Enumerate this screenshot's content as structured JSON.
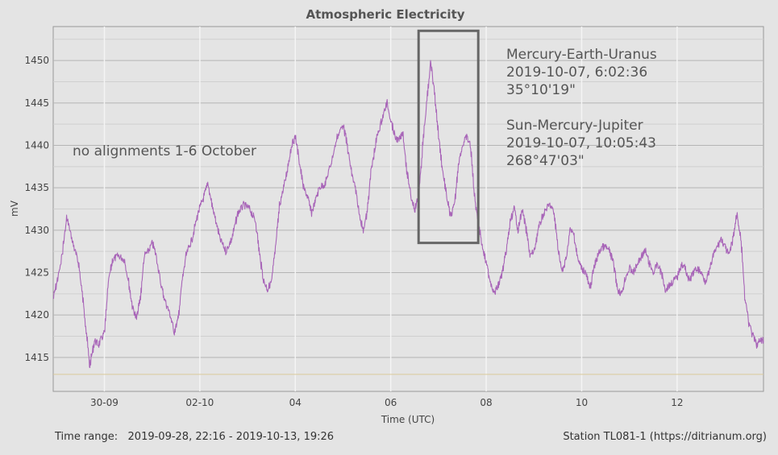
{
  "chart_data": {
    "type": "line",
    "title": "Atmospheric Electricity",
    "xlabel": "Time (UTC)",
    "ylabel": "mV",
    "xlim": [
      "2019-09-28T22:16",
      "2019-10-13T19:26"
    ],
    "ylim": [
      1411,
      1454
    ],
    "x_ticks": [
      {
        "t": "2019-09-30T00:00",
        "label": "30-09"
      },
      {
        "t": "2019-10-02T00:00",
        "label": "02-10"
      },
      {
        "t": "2019-10-04T00:00",
        "label": "04"
      },
      {
        "t": "2019-10-06T00:00",
        "label": "06"
      },
      {
        "t": "2019-10-08T00:00",
        "label": "08"
      },
      {
        "t": "2019-10-10T00:00",
        "label": "10"
      },
      {
        "t": "2019-10-12T00:00",
        "label": "12"
      }
    ],
    "y_ticks": [
      1415,
      1420,
      1425,
      1430,
      1435,
      1440,
      1445,
      1450
    ],
    "reference_line": 1413,
    "grid": true,
    "series_color": "#a865b8",
    "series": [
      {
        "points": [
          [
            "2019-09-28T22:16",
            1422.0
          ],
          [
            "2019-09-29T02:00",
            1426.0
          ],
          [
            "2019-09-29T05:00",
            1431.5
          ],
          [
            "2019-09-29T08:00",
            1428.5
          ],
          [
            "2019-09-29T11:00",
            1426.0
          ],
          [
            "2019-09-29T14:00",
            1420.0
          ],
          [
            "2019-09-29T16:30",
            1414.0
          ],
          [
            "2019-09-29T19:00",
            1417.0
          ],
          [
            "2019-09-29T21:00",
            1416.5
          ],
          [
            "2019-09-30T00:00",
            1418.0
          ],
          [
            "2019-09-30T02:00",
            1424.0
          ],
          [
            "2019-09-30T04:00",
            1426.5
          ],
          [
            "2019-09-30T07:00",
            1427.0
          ],
          [
            "2019-09-30T10:00",
            1426.5
          ],
          [
            "2019-09-30T12:00",
            1424.0
          ],
          [
            "2019-09-30T14:00",
            1421.0
          ],
          [
            "2019-09-30T16:00",
            1419.5
          ],
          [
            "2019-09-30T18:00",
            1422.0
          ],
          [
            "2019-09-30T20:00",
            1427.0
          ],
          [
            "2019-09-30T22:00",
            1427.5
          ],
          [
            "2019-10-01T00:00",
            1428.5
          ],
          [
            "2019-10-01T02:00",
            1427.0
          ],
          [
            "2019-10-01T04:00",
            1424.0
          ],
          [
            "2019-10-01T06:00",
            1422.0
          ],
          [
            "2019-10-01T09:00",
            1420.0
          ],
          [
            "2019-10-01T11:00",
            1418.0
          ],
          [
            "2019-10-01T13:00",
            1419.5
          ],
          [
            "2019-10-01T15:00",
            1424.0
          ],
          [
            "2019-10-01T17:00",
            1427.0
          ],
          [
            "2019-10-01T20:00",
            1429.0
          ],
          [
            "2019-10-01T23:00",
            1432.0
          ],
          [
            "2019-10-02T02:00",
            1434.0
          ],
          [
            "2019-10-02T04:00",
            1435.5
          ],
          [
            "2019-10-02T06:00",
            1433.0
          ],
          [
            "2019-10-02T08:00",
            1431.0
          ],
          [
            "2019-10-02T10:00",
            1429.0
          ],
          [
            "2019-10-02T13:00",
            1427.5
          ],
          [
            "2019-10-02T16:00",
            1429.0
          ],
          [
            "2019-10-02T19:00",
            1432.0
          ],
          [
            "2019-10-02T22:00",
            1433.0
          ],
          [
            "2019-10-03T01:00",
            1432.5
          ],
          [
            "2019-10-03T04:00",
            1431.0
          ],
          [
            "2019-10-03T06:00",
            1427.0
          ],
          [
            "2019-10-03T08:00",
            1424.0
          ],
          [
            "2019-10-03T10:00",
            1423.0
          ],
          [
            "2019-10-03T12:00",
            1424.0
          ],
          [
            "2019-10-03T14:00",
            1428.0
          ],
          [
            "2019-10-03T16:00",
            1433.0
          ],
          [
            "2019-10-03T19:00",
            1436.0
          ],
          [
            "2019-10-03T22:00",
            1440.0
          ],
          [
            "2019-10-04T00:00",
            1441.0
          ],
          [
            "2019-10-04T02:00",
            1438.0
          ],
          [
            "2019-10-04T04:00",
            1435.0
          ],
          [
            "2019-10-04T06:00",
            1434.0
          ],
          [
            "2019-10-04T08:00",
            1432.0
          ],
          [
            "2019-10-04T10:00",
            1433.5
          ],
          [
            "2019-10-04T12:00",
            1435.0
          ],
          [
            "2019-10-04T15:00",
            1435.5
          ],
          [
            "2019-10-04T18:00",
            1438.0
          ],
          [
            "2019-10-04T21:00",
            1441.0
          ],
          [
            "2019-10-05T00:00",
            1442.5
          ],
          [
            "2019-10-05T02:00",
            1440.0
          ],
          [
            "2019-10-05T04:00",
            1437.0
          ],
          [
            "2019-10-05T06:00",
            1435.0
          ],
          [
            "2019-10-05T08:00",
            1432.0
          ],
          [
            "2019-10-05T10:00",
            1430.0
          ],
          [
            "2019-10-05T12:00",
            1432.0
          ],
          [
            "2019-10-05T14:00",
            1437.0
          ],
          [
            "2019-10-05T17:00",
            1441.0
          ],
          [
            "2019-10-05T20:00",
            1443.5
          ],
          [
            "2019-10-05T22:00",
            1445.0
          ],
          [
            "2019-10-06T00:00",
            1443.0
          ],
          [
            "2019-10-06T02:00",
            1441.0
          ],
          [
            "2019-10-06T04:00",
            1440.5
          ],
          [
            "2019-10-06T06:00",
            1441.5
          ],
          [
            "2019-10-06T08:00",
            1437.0
          ],
          [
            "2019-10-06T10:00",
            1434.0
          ],
          [
            "2019-10-06T12:00",
            1432.5
          ],
          [
            "2019-10-06T14:00",
            1434.0
          ],
          [
            "2019-10-06T16:00",
            1440.0
          ],
          [
            "2019-10-06T18:00",
            1445.0
          ],
          [
            "2019-10-06T20:00",
            1450.0
          ],
          [
            "2019-10-06T22:00",
            1446.0
          ],
          [
            "2019-10-07T00:00",
            1441.0
          ],
          [
            "2019-10-07T02:00",
            1437.0
          ],
          [
            "2019-10-07T04:00",
            1434.0
          ],
          [
            "2019-10-07T06:00",
            1431.5
          ],
          [
            "2019-10-07T08:00",
            1433.0
          ],
          [
            "2019-10-07T10:00",
            1438.0
          ],
          [
            "2019-10-07T12:00",
            1440.0
          ],
          [
            "2019-10-07T14:00",
            1441.0
          ],
          [
            "2019-10-07T16:00",
            1440.0
          ],
          [
            "2019-10-07T18:00",
            1434.0
          ],
          [
            "2019-10-07T20:00",
            1431.0
          ],
          [
            "2019-10-07T22:00",
            1428.0
          ],
          [
            "2019-10-08T00:00",
            1426.0
          ],
          [
            "2019-10-08T02:00",
            1424.0
          ],
          [
            "2019-10-08T04:00",
            1422.5
          ],
          [
            "2019-10-08T06:00",
            1423.5
          ],
          [
            "2019-10-08T08:00",
            1425.0
          ],
          [
            "2019-10-08T10:00",
            1427.5
          ],
          [
            "2019-10-08T12:00",
            1431.0
          ],
          [
            "2019-10-08T14:00",
            1432.5
          ],
          [
            "2019-10-08T16:00",
            1430.0
          ],
          [
            "2019-10-08T18:00",
            1432.5
          ],
          [
            "2019-10-08T20:00",
            1430.0
          ],
          [
            "2019-10-08T22:00",
            1427.0
          ],
          [
            "2019-10-09T00:00",
            1427.5
          ],
          [
            "2019-10-09T02:00",
            1430.0
          ],
          [
            "2019-10-09T04:00",
            1431.5
          ],
          [
            "2019-10-09T06:00",
            1432.5
          ],
          [
            "2019-10-09T08:00",
            1433.0
          ],
          [
            "2019-10-09T10:00",
            1432.0
          ],
          [
            "2019-10-09T12:00",
            1428.0
          ],
          [
            "2019-10-09T14:00",
            1425.0
          ],
          [
            "2019-10-09T16:00",
            1426.5
          ],
          [
            "2019-10-09T18:00",
            1430.0
          ],
          [
            "2019-10-09T20:00",
            1429.5
          ],
          [
            "2019-10-09T22:00",
            1426.5
          ],
          [
            "2019-10-10T00:00",
            1425.5
          ],
          [
            "2019-10-10T02:00",
            1425.0
          ],
          [
            "2019-10-10T04:00",
            1423.0
          ],
          [
            "2019-10-10T06:00",
            1425.5
          ],
          [
            "2019-10-10T08:00",
            1427.0
          ],
          [
            "2019-10-10T10:00",
            1428.0
          ],
          [
            "2019-10-10T12:00",
            1428.0
          ],
          [
            "2019-10-10T14:00",
            1427.5
          ],
          [
            "2019-10-10T16:00",
            1426.0
          ],
          [
            "2019-10-10T18:00",
            1423.0
          ],
          [
            "2019-10-10T20:00",
            1422.5
          ],
          [
            "2019-10-10T22:00",
            1424.5
          ],
          [
            "2019-10-11T00:00",
            1425.5
          ],
          [
            "2019-10-11T02:00",
            1425.0
          ],
          [
            "2019-10-11T04:00",
            1426.0
          ],
          [
            "2019-10-11T06:00",
            1427.0
          ],
          [
            "2019-10-11T08:00",
            1427.5
          ],
          [
            "2019-10-11T10:00",
            1426.0
          ],
          [
            "2019-10-11T12:00",
            1425.0
          ],
          [
            "2019-10-11T14:00",
            1426.0
          ],
          [
            "2019-10-11T16:00",
            1425.0
          ],
          [
            "2019-10-11T18:00",
            1423.0
          ],
          [
            "2019-10-11T20:00",
            1423.5
          ],
          [
            "2019-10-11T22:00",
            1424.0
          ],
          [
            "2019-10-12T00:00",
            1424.5
          ],
          [
            "2019-10-12T02:00",
            1426.0
          ],
          [
            "2019-10-12T04:00",
            1425.5
          ],
          [
            "2019-10-12T06:00",
            1424.0
          ],
          [
            "2019-10-12T08:00",
            1425.0
          ],
          [
            "2019-10-12T10:00",
            1425.5
          ],
          [
            "2019-10-12T12:00",
            1425.0
          ],
          [
            "2019-10-12T14:00",
            1424.0
          ],
          [
            "2019-10-12T16:00",
            1425.0
          ],
          [
            "2019-10-12T18:00",
            1427.0
          ],
          [
            "2019-10-12T20:00",
            1428.0
          ],
          [
            "2019-10-12T22:00",
            1429.0
          ],
          [
            "2019-10-13T00:00",
            1428.0
          ],
          [
            "2019-10-13T02:00",
            1427.0
          ],
          [
            "2019-10-13T04:00",
            1429.0
          ],
          [
            "2019-10-13T06:00",
            1432.0
          ],
          [
            "2019-10-13T08:00",
            1429.0
          ],
          [
            "2019-10-13T10:00",
            1422.0
          ],
          [
            "2019-10-13T12:00",
            1419.0
          ],
          [
            "2019-10-13T14:00",
            1417.5
          ],
          [
            "2019-10-13T16:00",
            1416.5
          ],
          [
            "2019-10-13T18:00",
            1417.0
          ],
          [
            "2019-10-13T19:26",
            1417.0
          ]
        ]
      }
    ],
    "highlight_box": {
      "x": [
        "2019-10-06T14:00",
        "2019-10-07T20:00"
      ],
      "y": [
        1428.5,
        1453.5
      ]
    },
    "annotations": {
      "left": "no alignments 1-6 October",
      "right_lines": [
        "Mercury-Earth-Uranus",
        "2019-10-07, 6:02:36",
        "35°10'19\"",
        "",
        "Sun-Mercury-Jupiter",
        "2019-10-07, 10:05:43",
        "268°47'03\""
      ]
    }
  },
  "footer": {
    "time_range": "Time range:   2019-09-28, 22:16 - 2019-10-13, 19:26",
    "station": "Station TL081-1 (https://ditrianum.org)"
  }
}
